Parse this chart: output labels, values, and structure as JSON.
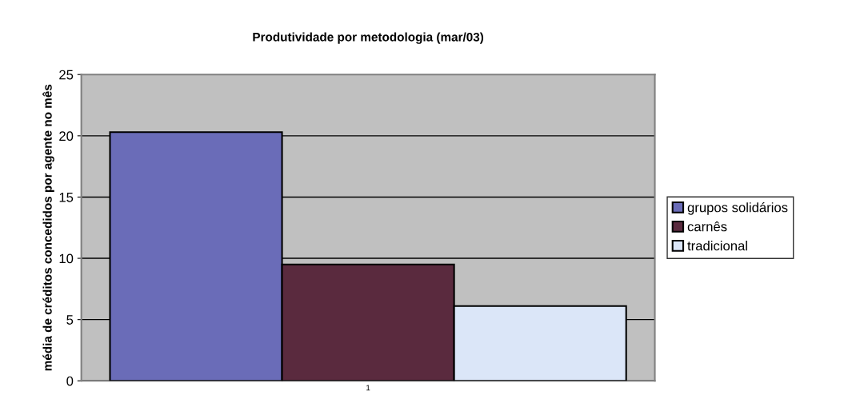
{
  "chart_data": {
    "type": "bar",
    "title": "Produtividade por metodologia (mar/03)",
    "ylabel": "média de créditos concedidos por agente no mês",
    "categories": [
      "1"
    ],
    "series": [
      {
        "name": "grupos solidários",
        "color": "#6a6cb8",
        "values": [
          20.3
        ]
      },
      {
        "name": "carnês",
        "color": "#5a2a3e",
        "values": [
          9.5
        ]
      },
      {
        "name": "tradicional",
        "color": "#dbe6f8",
        "values": [
          6.1
        ]
      }
    ],
    "ylim": [
      0,
      25
    ],
    "yticks": [
      0,
      5,
      10,
      15,
      20,
      25
    ],
    "grid": "y",
    "legend": "right"
  }
}
